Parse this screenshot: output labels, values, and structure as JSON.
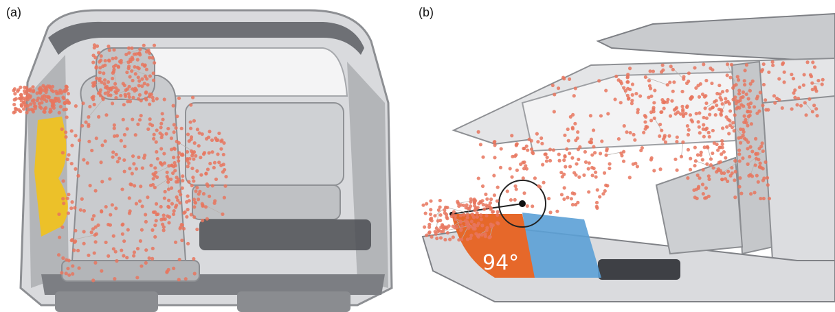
{
  "panels": [
    {
      "label": "(a)"
    },
    {
      "label": "(b)",
      "angle_label": "94°"
    }
  ],
  "colors": {
    "body_frame": "#9a9ca0",
    "body_dark": "#4b4d52",
    "seat": "#c7c9cc",
    "points": "#e8765e",
    "edges": "#b9b2ae",
    "door_panel": "#f2c21a",
    "angle_orange": "#e6682a",
    "angle_blue": "#5ba0d6"
  }
}
